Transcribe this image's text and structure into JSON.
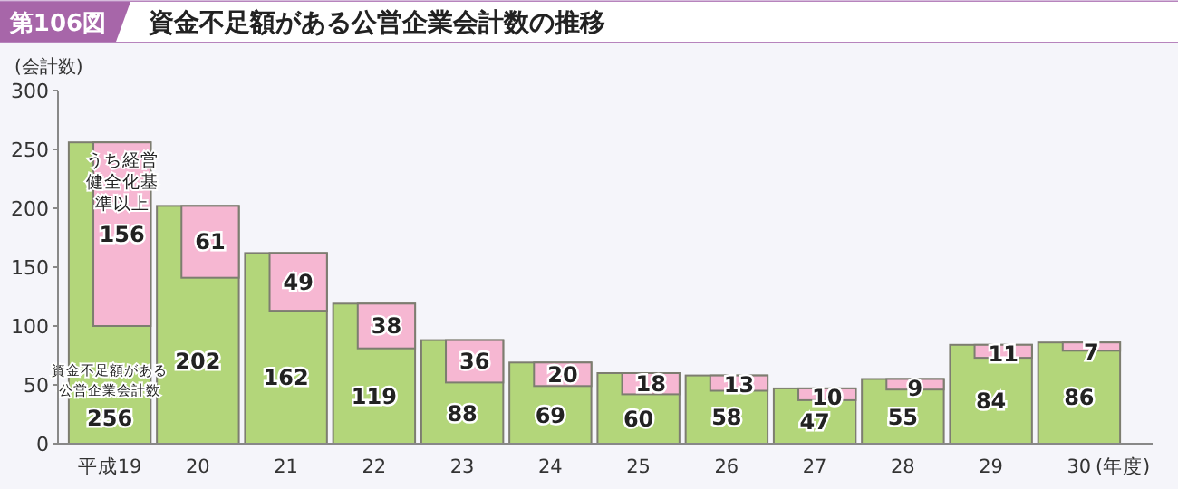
{
  "chart_data": {
    "type": "bar",
    "title": "資金不足額がある公営企業会計数の推移",
    "annotations": [
      "第106図"
    ],
    "ylabel": "(会計数)",
    "xlabel": "(年度)",
    "categories": [
      "平成19",
      "20",
      "21",
      "22",
      "23",
      "24",
      "25",
      "26",
      "27",
      "28",
      "29",
      "30"
    ],
    "ylim": [
      0,
      300
    ],
    "yticks": [
      0,
      50,
      100,
      150,
      200,
      250,
      300
    ],
    "data_labels": true,
    "grid": false,
    "series": [
      {
        "name": "資金不足額がある公営企業会計数",
        "color": "#b3d67a",
        "values": [
          256,
          202,
          162,
          119,
          88,
          69,
          60,
          58,
          47,
          55,
          84,
          86
        ]
      },
      {
        "name": "うち経営健全化基準以上",
        "color": "#f6b7d2",
        "values": [
          156,
          61,
          49,
          38,
          36,
          20,
          18,
          13,
          10,
          9,
          11,
          7
        ],
        "base": [
          100,
          141,
          113,
          81,
          52,
          49,
          42,
          45,
          37,
          46,
          73,
          79
        ]
      }
    ]
  }
}
